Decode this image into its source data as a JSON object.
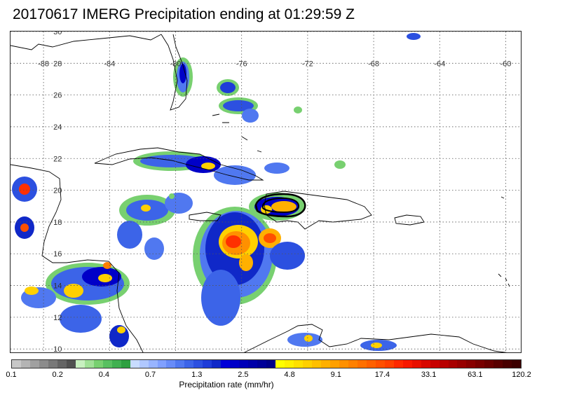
{
  "title": "20170617 IMERG Precipitation ending at 01:29:59 Z",
  "map": {
    "lon_labels": [
      "-88",
      "-84",
      "-80",
      "-76",
      "-72",
      "-68",
      "-64",
      "-60"
    ],
    "lon_values": [
      -88,
      -84,
      -80,
      -76,
      -72,
      -68,
      -64,
      -60
    ],
    "lat_labels": [
      "30",
      "28",
      "26",
      "24",
      "22",
      "20",
      "18",
      "16",
      "14",
      "12",
      "10"
    ],
    "lat_values": [
      30,
      28,
      26,
      24,
      22,
      20,
      18,
      16,
      14,
      12,
      10
    ],
    "lon_range": [
      -90,
      -59
    ],
    "lat_range": [
      9.7,
      30
    ],
    "grid": true,
    "grid_style": "dotted",
    "coastline_color": "#000000"
  },
  "colorbar": {
    "title": "Precipitation rate (mm/hr)",
    "tick_labels": [
      "0.1",
      "0.2",
      "0.4",
      "0.7",
      "1.3",
      "2.5",
      "4.8",
      "9.1",
      "17.4",
      "33.1",
      "63.1",
      "120.2"
    ],
    "colors": [
      "#c8c8c8",
      "#b4b4b4",
      "#a0a0a0",
      "#8c8c8c",
      "#787878",
      "#646464",
      "#505050",
      "#c8f0c0",
      "#a0e096",
      "#78d070",
      "#58c060",
      "#40b050",
      "#2ea040",
      "#c8dcff",
      "#b0c8ff",
      "#98b4ff",
      "#80a0ff",
      "#688cf8",
      "#5078f0",
      "#3c64e8",
      "#2c50e0",
      "#1e3cd8",
      "#1028c8",
      "#0000d8",
      "#0000c8",
      "#0000b8",
      "#0000a8",
      "#000098",
      "#000088",
      "#ffff00",
      "#fff000",
      "#ffe000",
      "#ffd000",
      "#ffc000",
      "#ffb000",
      "#ffa000",
      "#ff9000",
      "#ff8000",
      "#ff7000",
      "#ff6000",
      "#ff5000",
      "#ff4000",
      "#ff2800",
      "#f81800",
      "#e81000",
      "#d80800",
      "#c80000",
      "#b80000",
      "#a80000",
      "#980000",
      "#880000",
      "#780000",
      "#680000",
      "#580000",
      "#480000",
      "#3c0000"
    ]
  },
  "legend_levels": {
    "light": "#78d070",
    "moderate": "#5078f0",
    "heavy": "#0000c8",
    "intense": "#ffd000",
    "extreme": "#ff3000"
  }
}
